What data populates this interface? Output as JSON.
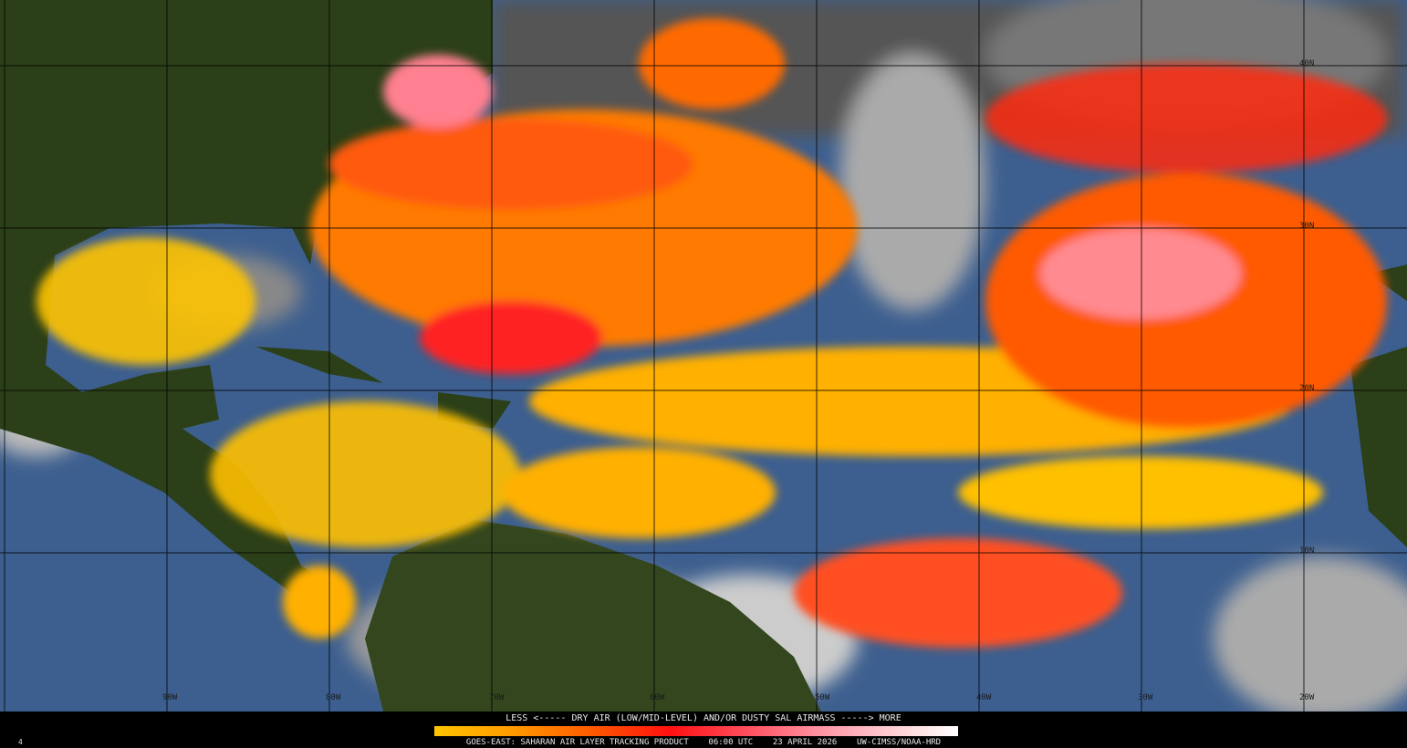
{
  "product": {
    "legend_title": "LESS <----- DRY AIR (LOW/MID-LEVEL) AND/OR DUSTY SAL AIRMASS -----> MORE",
    "legend_scale": {
      "from": "LESS",
      "to": "MORE",
      "colors": [
        "#ffc400",
        "#ff9a00",
        "#ff5a00",
        "#ff1010",
        "#ff5060",
        "#ff9aa8",
        "#ffd8dc",
        "#ffffff"
      ]
    },
    "footer": "GOES-EAST: SAHARAN AIR LAYER TRACKING PRODUCT    06:00 UTC    23 APRIL 2026    UW-CIMSS/NOAA-HRD",
    "frame_marker": "4"
  },
  "map": {
    "latitude_labels": [
      "40N",
      "30N",
      "20N",
      "10N"
    ],
    "longitude_labels": [
      "90W",
      "80W",
      "70W",
      "60W",
      "50W",
      "40W",
      "30W",
      "20W"
    ],
    "colors": {
      "ocean": "#3d5f8f",
      "land": "#2a3d18",
      "cloud": "#9a9a9a",
      "dry_air_low": "#ffd000",
      "dry_air_mid": "#ff6000",
      "dry_air_high": "#ff2020",
      "dry_air_max": "#ffa0b0"
    }
  }
}
